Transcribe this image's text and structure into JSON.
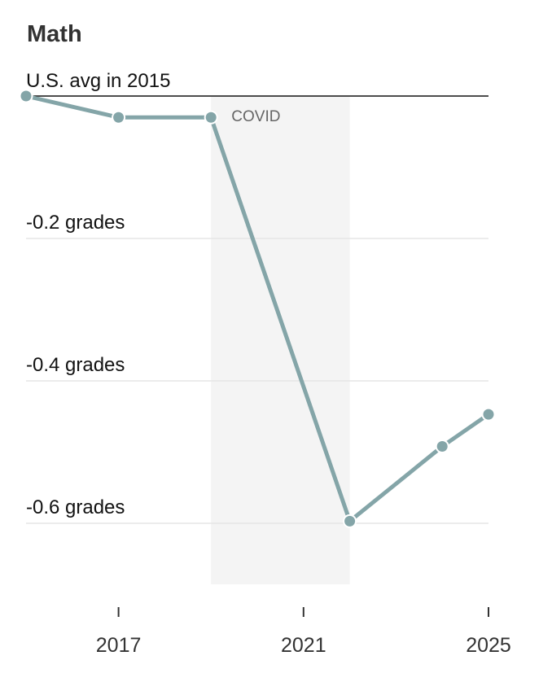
{
  "chart_data": {
    "type": "line",
    "title": "Math",
    "baseline_label": "U.S. avg in 2015",
    "y_unit": "grades",
    "ylim": [
      -0.69,
      0.0
    ],
    "yticks": [
      {
        "value": -0.2,
        "label": "-0.2 grades"
      },
      {
        "value": -0.4,
        "label": "-0.4 grades"
      },
      {
        "value": -0.6,
        "label": "-0.6 grades"
      }
    ],
    "xlim": [
      2015,
      2025
    ],
    "xticks": [
      {
        "value": 2017,
        "label": "2017"
      },
      {
        "value": 2021,
        "label": "2021"
      },
      {
        "value": 2025,
        "label": "2025"
      }
    ],
    "shaded_region": {
      "label": "COVID",
      "x_start": 2019,
      "x_end": 2022
    },
    "series": [
      {
        "color": "#84a5a8",
        "x": [
          2015,
          2017,
          2019,
          2022,
          2024,
          2025
        ],
        "values": [
          0.0,
          -0.03,
          -0.03,
          -0.597,
          -0.492,
          -0.447
        ]
      }
    ]
  }
}
